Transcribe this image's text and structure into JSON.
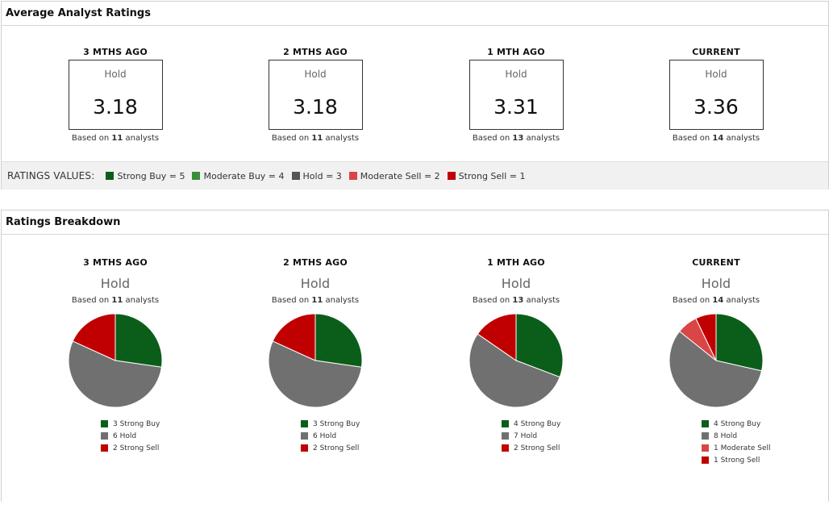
{
  "colors": {
    "strong_buy": "#0b5e1a",
    "moderate_buy": "#3a8f3a",
    "hold": "#707070",
    "moderate_sell": "#d94646",
    "strong_sell": "#c00000"
  },
  "average": {
    "title": "Average Analyst Ratings",
    "based_prefix": "Based on ",
    "based_suffix": " analysts",
    "periods": [
      {
        "label": "3 MTHS AGO",
        "rating": "Hold",
        "value": "3.18",
        "analysts": "11"
      },
      {
        "label": "2 MTHS AGO",
        "rating": "Hold",
        "value": "3.18",
        "analysts": "11"
      },
      {
        "label": "1 MTH AGO",
        "rating": "Hold",
        "value": "3.31",
        "analysts": "13"
      },
      {
        "label": "CURRENT",
        "rating": "Hold",
        "value": "3.36",
        "analysts": "14"
      }
    ]
  },
  "ratings_values": {
    "title": "RATINGS VALUES:",
    "items": [
      {
        "label": "Strong Buy = 5",
        "color": "#0b5e1a"
      },
      {
        "label": "Moderate Buy = 4",
        "color": "#3a8f3a"
      },
      {
        "label": "Hold = 3",
        "color": "#555555"
      },
      {
        "label": "Moderate Sell = 2",
        "color": "#d94646"
      },
      {
        "label": "Strong Sell = 1",
        "color": "#c00000"
      }
    ]
  },
  "breakdown": {
    "title": "Ratings Breakdown",
    "based_prefix": "Based on ",
    "based_suffix": " analysts"
  },
  "chart_data": [
    {
      "type": "pie",
      "title": "3 MTHS AGO",
      "subtitle": "Hold",
      "analysts": "11",
      "slices": [
        {
          "label": "3 Strong Buy",
          "value": 3,
          "color": "#0b5e1a"
        },
        {
          "label": "6 Hold",
          "value": 6,
          "color": "#707070"
        },
        {
          "label": "2 Strong Sell",
          "value": 2,
          "color": "#c00000"
        }
      ]
    },
    {
      "type": "pie",
      "title": "2 MTHS AGO",
      "subtitle": "Hold",
      "analysts": "11",
      "slices": [
        {
          "label": "3 Strong Buy",
          "value": 3,
          "color": "#0b5e1a"
        },
        {
          "label": "6 Hold",
          "value": 6,
          "color": "#707070"
        },
        {
          "label": "2 Strong Sell",
          "value": 2,
          "color": "#c00000"
        }
      ]
    },
    {
      "type": "pie",
      "title": "1 MTH AGO",
      "subtitle": "Hold",
      "analysts": "13",
      "slices": [
        {
          "label": "4 Strong Buy",
          "value": 4,
          "color": "#0b5e1a"
        },
        {
          "label": "7 Hold",
          "value": 7,
          "color": "#707070"
        },
        {
          "label": "2 Strong Sell",
          "value": 2,
          "color": "#c00000"
        }
      ]
    },
    {
      "type": "pie",
      "title": "CURRENT",
      "subtitle": "Hold",
      "analysts": "14",
      "slices": [
        {
          "label": "4 Strong Buy",
          "value": 4,
          "color": "#0b5e1a"
        },
        {
          "label": "8 Hold",
          "value": 8,
          "color": "#707070"
        },
        {
          "label": "1 Moderate Sell",
          "value": 1,
          "color": "#d94646"
        },
        {
          "label": "1 Strong Sell",
          "value": 1,
          "color": "#c00000"
        }
      ]
    }
  ]
}
